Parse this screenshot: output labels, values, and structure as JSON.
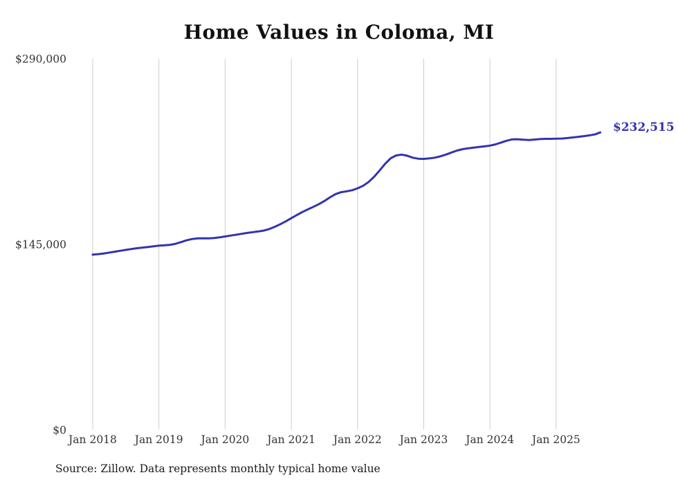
{
  "chart_data": {
    "type": "line",
    "title": "Home Values in Coloma, MI",
    "source": "Source: Zillow. Data represents monthly typical home value",
    "end_label": "$232,515",
    "end_value": 232515,
    "line_color": "#3333b0",
    "grid_color": "#cccccc",
    "ylim": [
      0,
      290000
    ],
    "grid": "vertical-only",
    "legend": "none",
    "y_ticks": [
      {
        "value": 0,
        "label": "$0"
      },
      {
        "value": 145000,
        "label": "$145,000"
      },
      {
        "value": 290000,
        "label": "$290,000"
      }
    ],
    "x_ticks": [
      {
        "month_index": 0,
        "label": "Jan 2018"
      },
      {
        "month_index": 12,
        "label": "Jan 2019"
      },
      {
        "month_index": 24,
        "label": "Jan 2020"
      },
      {
        "month_index": 36,
        "label": "Jan 2021"
      },
      {
        "month_index": 48,
        "label": "Jan 2022"
      },
      {
        "month_index": 60,
        "label": "Jan 2023"
      },
      {
        "month_index": 72,
        "label": "Jan 2024"
      },
      {
        "month_index": 84,
        "label": "Jan 2025"
      }
    ],
    "series": [
      {
        "name": "Monthly typical home value",
        "x_start": "Jan 2018",
        "x_interval": "month",
        "values": [
          137000,
          137400,
          137900,
          138600,
          139300,
          140000,
          140700,
          141400,
          142000,
          142500,
          143000,
          143500,
          144000,
          144300,
          144700,
          145500,
          146800,
          148200,
          149200,
          149700,
          149800,
          149700,
          150000,
          150500,
          151200,
          151900,
          152600,
          153300,
          154000,
          154600,
          155100,
          155800,
          157000,
          158800,
          160800,
          163000,
          165500,
          168000,
          170300,
          172400,
          174400,
          176500,
          179000,
          181800,
          184300,
          185800,
          186500,
          187300,
          188800,
          190800,
          193800,
          197800,
          202800,
          208000,
          212300,
          214500,
          215200,
          214300,
          212800,
          212000,
          211800,
          212200,
          212800,
          213800,
          215200,
          216800,
          218300,
          219400,
          220100,
          220600,
          221100,
          221600,
          222200,
          223200,
          224600,
          226000,
          227100,
          227200,
          226800,
          226600,
          226900,
          227300,
          227500,
          227500,
          227600,
          227700,
          228100,
          228600,
          229100,
          229600,
          230200,
          230900,
          232515
        ]
      }
    ]
  }
}
